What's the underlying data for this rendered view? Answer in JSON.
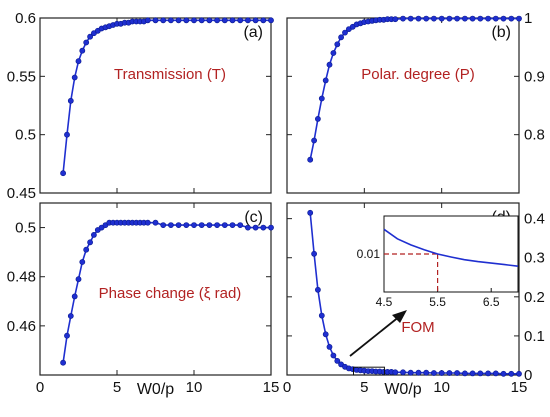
{
  "chart_data": [
    {
      "type": "line",
      "panel_label": "(a)",
      "title": "Transmission (T)",
      "xlabel": "",
      "ylabel": "",
      "xlim": [
        0,
        15
      ],
      "ylim": [
        0.45,
        0.6
      ],
      "xticks": [
        0,
        5,
        10,
        15
      ],
      "yticks": [
        0.45,
        0.5,
        0.55,
        0.6
      ],
      "ytick_labels": [
        "0.45",
        "0.5",
        "0.55",
        "0.6"
      ],
      "ytick_side": "left",
      "grid": false,
      "series": [
        {
          "color": "#1f2fd0",
          "x": [
            1.5,
            1.75,
            2.0,
            2.25,
            2.5,
            2.75,
            3.0,
            3.25,
            3.5,
            3.75,
            4.0,
            4.25,
            4.5,
            4.75,
            5.0,
            5.25,
            5.5,
            5.75,
            6.0,
            6.25,
            6.5,
            6.75,
            7.0,
            7.5,
            8,
            8.5,
            9,
            9.5,
            10,
            10.5,
            11,
            11.5,
            12,
            12.5,
            13,
            13.5,
            14,
            14.5,
            15
          ],
          "y": [
            0.467,
            0.5,
            0.529,
            0.549,
            0.563,
            0.572,
            0.579,
            0.584,
            0.587,
            0.589,
            0.591,
            0.592,
            0.593,
            0.594,
            0.595,
            0.595,
            0.596,
            0.596,
            0.597,
            0.597,
            0.597,
            0.597,
            0.598,
            0.598,
            0.598,
            0.598,
            0.598,
            0.598,
            0.598,
            0.598,
            0.598,
            0.598,
            0.598,
            0.598,
            0.598,
            0.598,
            0.598,
            0.598,
            0.598
          ]
        }
      ]
    },
    {
      "type": "line",
      "panel_label": "(b)",
      "title": "Polar. degree (P)",
      "xlabel": "",
      "ylabel": "",
      "xlim": [
        0,
        15
      ],
      "ylim": [
        0.7,
        1.0
      ],
      "xticks": [
        0,
        5,
        10,
        15
      ],
      "yticks": [
        0.8,
        0.9,
        1.0
      ],
      "ytick_labels": [
        "0.8",
        "0.9",
        "1"
      ],
      "ytick_side": "right",
      "grid": false,
      "series": [
        {
          "color": "#1f2fd0",
          "x": [
            1.5,
            1.75,
            2.0,
            2.25,
            2.5,
            2.75,
            3.0,
            3.25,
            3.5,
            3.75,
            4.0,
            4.25,
            4.5,
            4.75,
            5.0,
            5.25,
            5.5,
            5.75,
            6.0,
            6.25,
            6.5,
            6.75,
            7.0,
            7.5,
            8,
            8.5,
            9,
            9.5,
            10,
            10.5,
            11,
            11.5,
            12,
            12.5,
            13,
            13.5,
            14,
            14.5,
            15
          ],
          "y": [
            0.757,
            0.79,
            0.827,
            0.862,
            0.893,
            0.92,
            0.94,
            0.955,
            0.967,
            0.975,
            0.981,
            0.985,
            0.989,
            0.991,
            0.993,
            0.994,
            0.995,
            0.996,
            0.997,
            0.997,
            0.998,
            0.998,
            0.998,
            0.999,
            0.999,
            0.999,
            0.999,
            0.999,
            0.999,
            0.999,
            0.999,
            0.999,
            0.999,
            0.999,
            0.999,
            0.999,
            0.999,
            0.999,
            0.999
          ]
        }
      ]
    },
    {
      "type": "line",
      "panel_label": "(c)",
      "title": "Phase change (ξ rad)",
      "xlabel": "W0/p",
      "ylabel": "",
      "xlim": [
        0,
        15
      ],
      "ylim": [
        0.44,
        0.51
      ],
      "xticks": [
        0,
        5,
        10,
        15
      ],
      "xtick_labels": [
        "0",
        "5",
        "10",
        "15"
      ],
      "yticks": [
        0.46,
        0.48,
        0.5
      ],
      "ytick_labels": [
        "0.46",
        "0.48",
        "0.5"
      ],
      "ytick_side": "left",
      "grid": false,
      "series": [
        {
          "color": "#1f2fd0",
          "x": [
            1.5,
            1.75,
            2.0,
            2.25,
            2.5,
            2.75,
            3.0,
            3.25,
            3.5,
            3.75,
            4.0,
            4.25,
            4.5,
            4.75,
            5.0,
            5.25,
            5.5,
            5.75,
            6.0,
            6.25,
            6.5,
            6.75,
            7.0,
            7.5,
            8,
            8.5,
            9,
            9.5,
            10,
            10.5,
            11,
            11.5,
            12,
            12.5,
            13,
            13.5,
            14,
            14.5,
            15
          ],
          "y": [
            0.445,
            0.456,
            0.464,
            0.472,
            0.479,
            0.486,
            0.491,
            0.494,
            0.497,
            0.499,
            0.5,
            0.501,
            0.502,
            0.502,
            0.502,
            0.502,
            0.502,
            0.502,
            0.502,
            0.502,
            0.502,
            0.502,
            0.502,
            0.502,
            0.501,
            0.501,
            0.501,
            0.501,
            0.501,
            0.501,
            0.501,
            0.501,
            0.501,
            0.501,
            0.501,
            0.5,
            0.5,
            0.5,
            0.5
          ]
        }
      ]
    },
    {
      "type": "line",
      "panel_label": "(d)",
      "title": "FOM",
      "xlabel": "W0/p",
      "ylabel": "",
      "xlim": [
        0,
        15
      ],
      "ylim": [
        0,
        0.44
      ],
      "xticks": [
        0,
        5,
        10,
        15
      ],
      "xtick_labels": [
        "0",
        "5",
        "10",
        "15"
      ],
      "yticks": [
        0,
        0.1,
        0.2,
        0.3,
        0.4
      ],
      "ytick_labels": [
        "0",
        "0.1",
        "0.2",
        "0.3",
        "0.4"
      ],
      "ytick_side": "right",
      "grid": false,
      "series": [
        {
          "color": "#1f2fd0",
          "x": [
            1.5,
            1.75,
            2.0,
            2.25,
            2.5,
            2.75,
            3.0,
            3.25,
            3.5,
            3.75,
            4.0,
            4.25,
            4.5,
            4.75,
            5.0,
            5.25,
            5.5,
            5.75,
            6.0,
            6.25,
            6.5,
            6.75,
            7.0,
            7.5,
            8,
            8.5,
            9,
            9.5,
            10,
            10.5,
            11,
            11.5,
            12,
            12.5,
            13,
            13.5,
            14,
            14.5,
            15
          ],
          "y": [
            0.415,
            0.31,
            0.218,
            0.152,
            0.104,
            0.072,
            0.05,
            0.036,
            0.027,
            0.021,
            0.017,
            0.015,
            0.013,
            0.012,
            0.011,
            0.01,
            0.01,
            0.009,
            0.009,
            0.008,
            0.008,
            0.008,
            0.007,
            0.007,
            0.006,
            0.006,
            0.006,
            0.005,
            0.005,
            0.005,
            0.005,
            0.004,
            0.004,
            0.004,
            0.004,
            0.004,
            0.003,
            0.003,
            0.003
          ]
        }
      ],
      "inset": {
        "xlim": [
          4.5,
          7.0
        ],
        "ylim": [
          0.0,
          0.02
        ],
        "xticks": [
          4.5,
          5.5,
          6.5
        ],
        "xtick_labels": [
          "4.5",
          "5.5",
          "6.5"
        ],
        "yticks": [
          0.01
        ],
        "ytick_labels": [
          "0.01"
        ],
        "reference_point": [
          5.5,
          0.01
        ],
        "reference_color": "#b22222",
        "series": [
          {
            "color": "#1f2fd0",
            "x": [
              4.5,
              4.75,
              5.0,
              5.25,
              5.5,
              5.75,
              6.0,
              6.25,
              6.5,
              6.75,
              7.0
            ],
            "y": [
              0.0165,
              0.014,
              0.0124,
              0.0111,
              0.01,
              0.0092,
              0.0085,
              0.008,
              0.0076,
              0.0072,
              0.0068
            ]
          }
        ]
      }
    }
  ]
}
